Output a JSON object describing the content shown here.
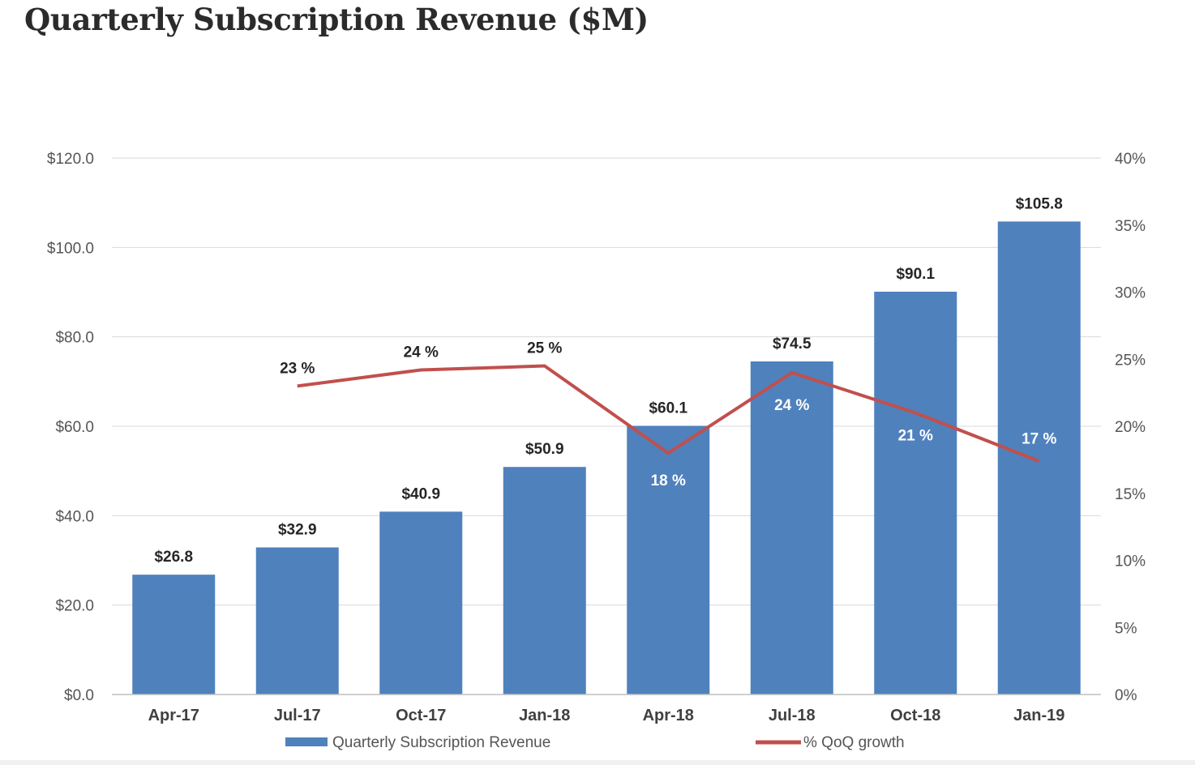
{
  "title": "Quarterly Subscription Revenue ($M)",
  "colors": {
    "bar": "#4f81bd",
    "line": "#c0504d",
    "grid": "#d9d9d9",
    "title": "#2b2b2b"
  },
  "chart_data": {
    "type": "bar",
    "title": "Quarterly Subscription Revenue ($M)",
    "categories": [
      "Apr-17",
      "Jul-17",
      "Oct-17",
      "Jan-18",
      "Apr-18",
      "Jul-18",
      "Oct-18",
      "Jan-19"
    ],
    "series": [
      {
        "name": "Quarterly Subscription Revenue",
        "type": "bar",
        "axis": "left",
        "values": [
          26.8,
          32.9,
          40.9,
          50.9,
          60.1,
          74.5,
          90.1,
          105.8
        ],
        "labels": [
          "$26.8",
          "$32.9",
          "$40.9",
          "$50.9",
          "$60.1",
          "$74.5",
          "$90.1",
          "$105.8"
        ]
      },
      {
        "name": "% QoQ growth",
        "type": "line",
        "axis": "right",
        "values": [
          null,
          23,
          24.2,
          24.5,
          18,
          24,
          21,
          17.4
        ],
        "labels": [
          "",
          "23 %",
          "24 %",
          "25 %",
          "18 %",
          "24 %",
          "21 %",
          "17 %"
        ]
      }
    ],
    "y_left": {
      "ylim": [
        0,
        120
      ],
      "ticks": [
        0,
        20,
        40,
        60,
        80,
        100,
        120
      ],
      "tick_labels": [
        "$0.0",
        "$20.0",
        "$40.0",
        "$60.0",
        "$80.0",
        "$100.0",
        "$120.0"
      ]
    },
    "y_right": {
      "ylim": [
        0,
        40
      ],
      "ticks": [
        0,
        5,
        10,
        15,
        20,
        25,
        30,
        35,
        40
      ],
      "tick_labels": [
        "0%",
        "5%",
        "10%",
        "15%",
        "20%",
        "25%",
        "30%",
        "35%",
        "40%"
      ]
    },
    "grid": true,
    "legend": "bottom"
  }
}
